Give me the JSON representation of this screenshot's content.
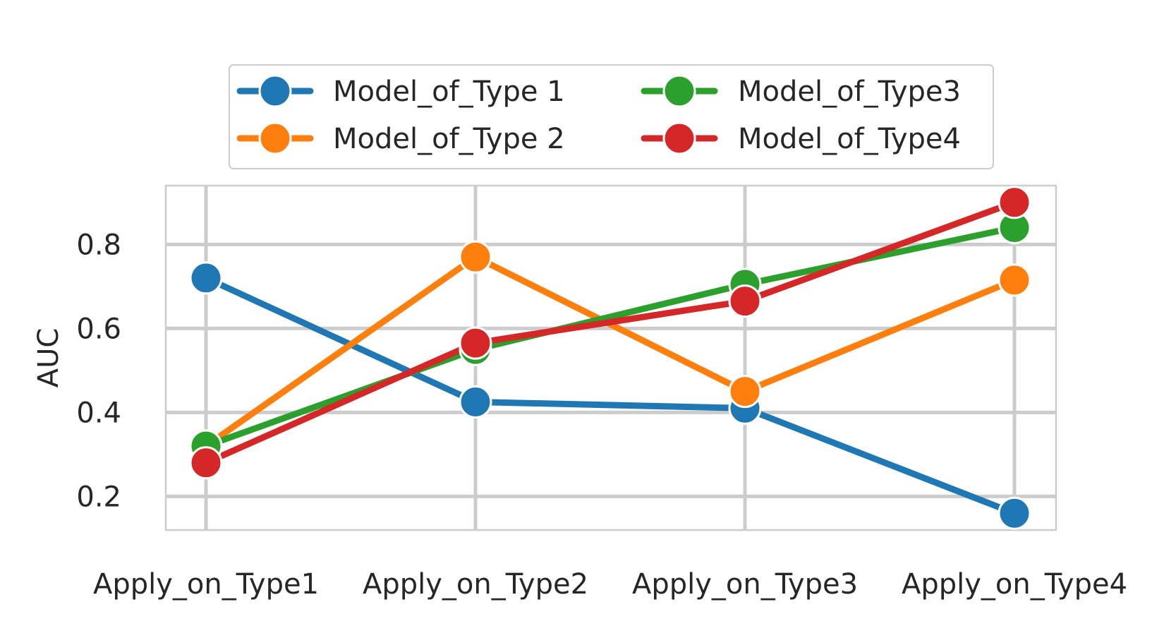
{
  "chart_data": {
    "type": "line",
    "ylabel": "AUC",
    "xlabel": "",
    "categories": [
      "Apply_on_Type1",
      "Apply_on_Type2",
      "Apply_on_Type3",
      "Apply_on_Type4"
    ],
    "ylim": [
      0.12,
      0.94
    ],
    "yticks": [
      0.2,
      0.4,
      0.6,
      0.8
    ],
    "ytick_labels": [
      "0.2",
      "0.4",
      "0.6",
      "0.8"
    ],
    "grid": true,
    "legend_position": "top-center",
    "series": [
      {
        "name": "Model_of_Type 1",
        "color": "#1f77b4",
        "values": [
          0.72,
          0.425,
          0.41,
          0.16
        ]
      },
      {
        "name": "Model_of_Type 2",
        "color": "#ff7f0e",
        "values": [
          0.32,
          0.77,
          0.45,
          0.715
        ]
      },
      {
        "name": "Model_of_Type3",
        "color": "#2ca02c",
        "values": [
          0.32,
          0.55,
          0.705,
          0.84
        ]
      },
      {
        "name": "Model_of_Type4",
        "color": "#d62728",
        "values": [
          0.28,
          0.565,
          0.665,
          0.9
        ]
      }
    ]
  }
}
